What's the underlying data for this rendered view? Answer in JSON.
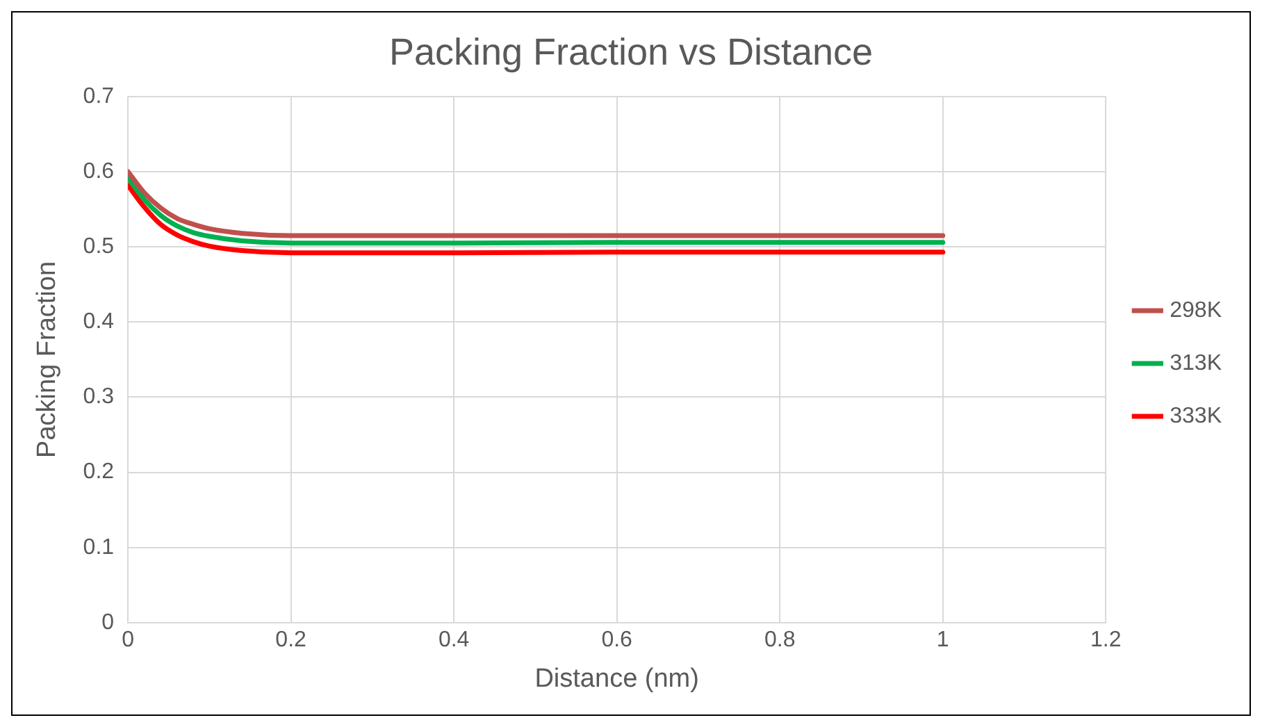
{
  "chart_data": {
    "type": "line",
    "title": "Packing Fraction vs Distance",
    "xlabel": "Distance (nm)",
    "ylabel": "Packing Fraction",
    "x": [
      0,
      0.02,
      0.04,
      0.06,
      0.08,
      0.1,
      0.14,
      0.2,
      0.4,
      0.6,
      1.0
    ],
    "series": [
      {
        "name": "298K",
        "color": "#c0504d",
        "values": [
          0.6,
          0.572,
          0.552,
          0.538,
          0.53,
          0.524,
          0.518,
          0.515,
          0.515,
          0.515,
          0.515
        ]
      },
      {
        "name": "313K",
        "color": "#00b050",
        "values": [
          0.592,
          0.563,
          0.542,
          0.528,
          0.519,
          0.514,
          0.508,
          0.505,
          0.505,
          0.506,
          0.506
        ]
      },
      {
        "name": "333K",
        "color": "#ff0000",
        "values": [
          0.582,
          0.553,
          0.53,
          0.516,
          0.507,
          0.501,
          0.495,
          0.492,
          0.492,
          0.493,
          0.493
        ]
      }
    ],
    "xlim": [
      0,
      1.2
    ],
    "xticks": [
      0,
      0.2,
      0.4,
      0.6,
      0.8,
      1,
      1.2
    ],
    "ylim": [
      0,
      0.7
    ],
    "yticks": [
      0,
      0.1,
      0.2,
      0.3,
      0.4,
      0.5,
      0.6,
      0.7
    ],
    "grid": true,
    "legend": "right",
    "marker": "none",
    "line_style": "solid"
  }
}
